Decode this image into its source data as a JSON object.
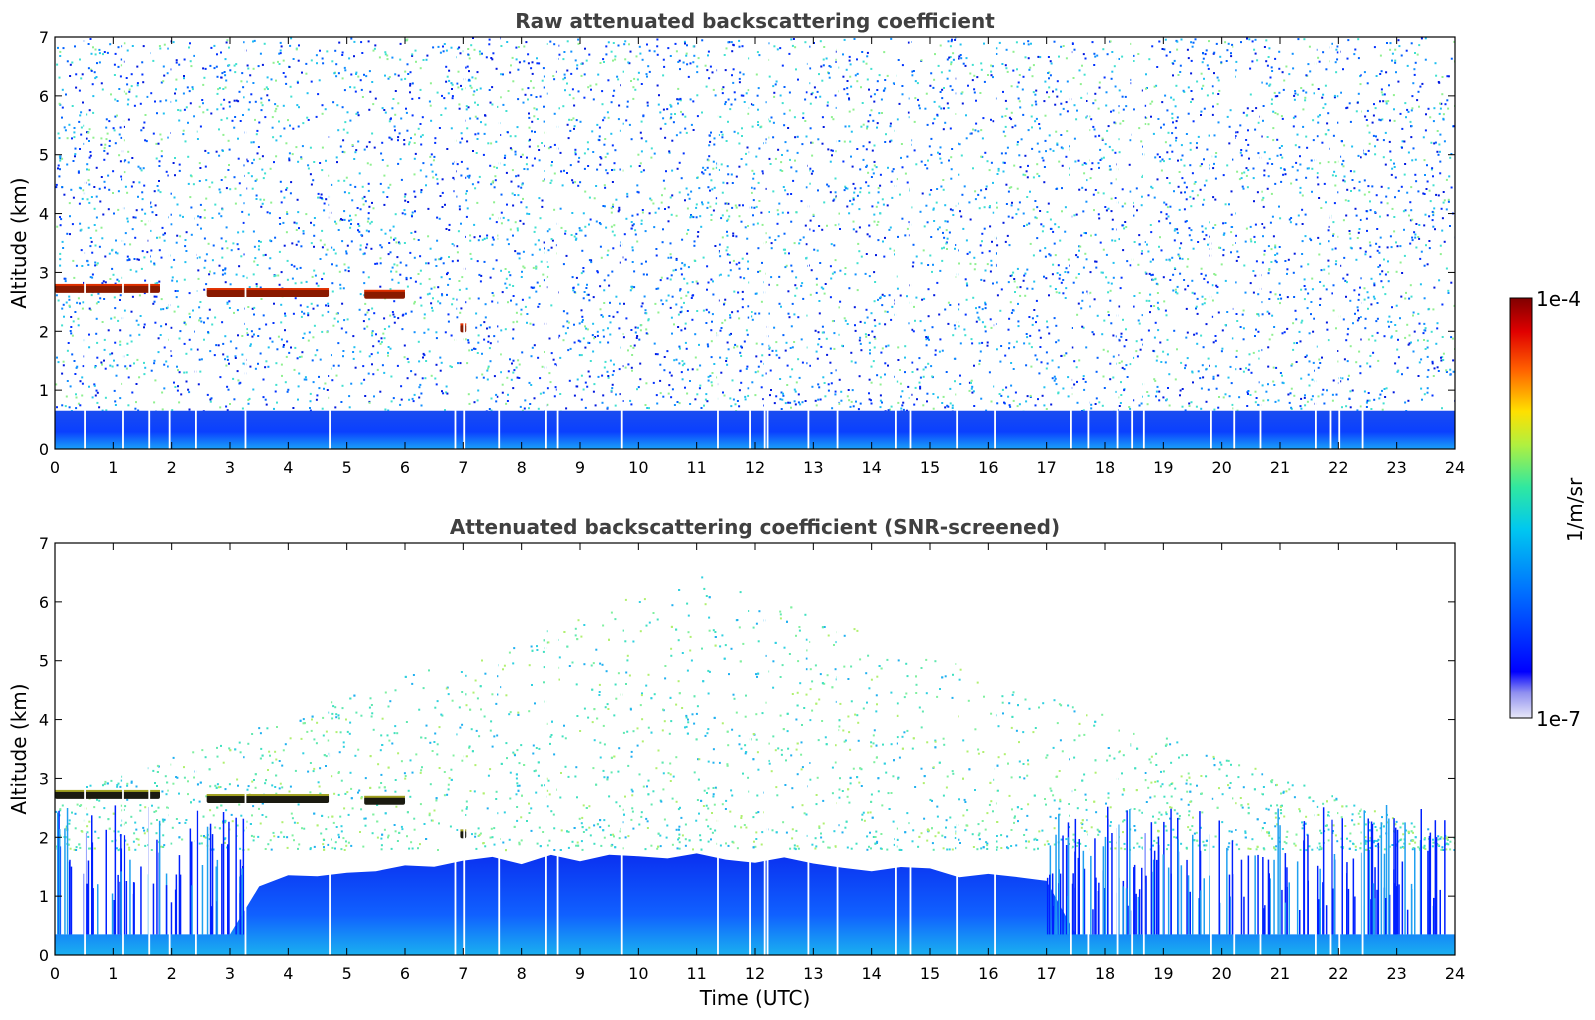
{
  "chart_data": [
    {
      "type": "heatmap",
      "title": "Raw attenuated backscattering coefficient",
      "xlabel": "",
      "ylabel": "Altitude (km)",
      "xlim": [
        0,
        24
      ],
      "ylim": [
        0,
        7
      ],
      "xticks": [
        "0",
        "1",
        "2",
        "3",
        "4",
        "5",
        "6",
        "7",
        "8",
        "9",
        "10",
        "11",
        "12",
        "13",
        "14",
        "15",
        "16",
        "17",
        "18",
        "19",
        "20",
        "21",
        "22",
        "23",
        "24"
      ],
      "yticks": [
        "0",
        "1",
        "2",
        "3",
        "4",
        "5",
        "6",
        "7"
      ],
      "features": {
        "cloud_layer": [
          {
            "start": 0.0,
            "end": 1.8,
            "altitude": 2.72
          },
          {
            "start": 2.6,
            "end": 4.7,
            "altitude": 2.65
          },
          {
            "start": 5.3,
            "end": 6.0,
            "altitude": 2.62
          },
          {
            "start": 6.95,
            "end": 7.05,
            "altitude": 2.05
          }
        ],
        "boundary_layer_top_km": 0.65,
        "screened": false
      }
    },
    {
      "type": "heatmap",
      "title": "Attenuated backscattering coefficient (SNR-screened)",
      "xlabel": "Time (UTC)",
      "ylabel": "Altitude (km)",
      "xlim": [
        0,
        24
      ],
      "ylim": [
        0,
        7
      ],
      "xticks": [
        "0",
        "1",
        "2",
        "3",
        "4",
        "5",
        "6",
        "7",
        "8",
        "9",
        "10",
        "11",
        "12",
        "13",
        "14",
        "15",
        "16",
        "17",
        "18",
        "19",
        "20",
        "21",
        "22",
        "23",
        "24"
      ],
      "yticks": [
        "0",
        "1",
        "2",
        "3",
        "4",
        "5",
        "6",
        "7"
      ],
      "features": {
        "cloud_layer": [
          {
            "start": 0.0,
            "end": 1.8,
            "altitude": 2.72
          },
          {
            "start": 2.6,
            "end": 4.7,
            "altitude": 2.65
          },
          {
            "start": 5.3,
            "end": 6.0,
            "altitude": 2.62
          },
          {
            "start": 6.95,
            "end": 7.05,
            "altitude": 2.05
          }
        ],
        "boundary_layer_top_km": 1.8,
        "screened": true
      }
    }
  ],
  "colorbar": {
    "max_label": "1e-4",
    "min_label": "1e-7",
    "unit_label": "1/m/sr",
    "colors": [
      "#e8e8f8",
      "#a0a0f0",
      "#0000ff",
      "#00b0ff",
      "#20e0c0",
      "#a0ff60",
      "#ffe000",
      "#ff5000",
      "#d00000",
      "#800000"
    ]
  }
}
